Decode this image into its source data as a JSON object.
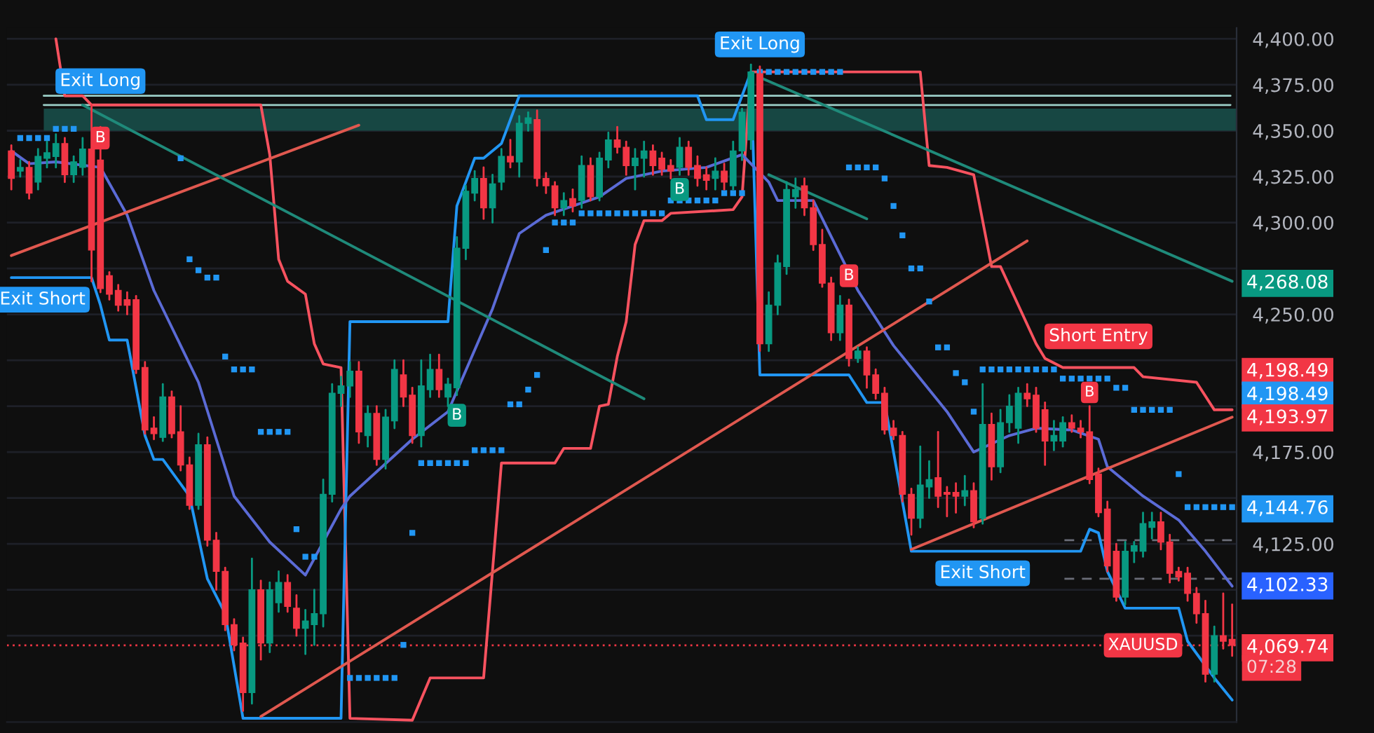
{
  "chart_data": {
    "type": "candlestick",
    "categories": [
      null,
      null,
      null,
      null,
      null,
      null,
      null,
      null,
      null,
      null,
      null,
      null,
      null,
      null,
      null,
      null,
      null,
      null,
      null,
      null,
      null,
      null,
      null,
      null,
      null,
      null,
      null,
      null,
      null,
      null,
      null,
      null,
      null,
      null,
      null,
      null,
      null,
      null,
      null,
      null,
      null,
      null,
      null,
      null,
      null,
      null,
      null,
      null,
      null,
      null,
      null,
      null,
      null,
      null,
      null,
      null,
      null,
      null,
      null,
      null,
      null,
      null,
      null,
      null,
      null,
      null,
      null,
      null,
      null,
      null,
      null,
      null,
      null,
      null,
      null,
      null,
      null,
      null,
      null,
      null,
      null,
      null,
      null,
      null,
      null,
      null,
      null,
      null,
      null,
      null,
      null,
      null,
      null,
      null,
      null,
      null,
      null,
      null,
      null,
      null,
      null,
      null,
      null,
      null,
      null,
      null,
      null,
      null,
      null,
      null,
      null,
      null,
      null,
      null,
      null,
      null,
      null,
      null,
      null,
      null,
      null,
      null,
      null,
      null,
      null,
      null,
      null,
      null,
      null,
      null,
      null,
      null,
      null,
      null,
      null,
      null,
      null,
      null
    ],
    "ohlc": [
      [
        4339,
        4342,
        4318,
        4324
      ],
      [
        4328,
        4334,
        4325,
        4330
      ],
      [
        4330,
        4333,
        4313,
        4316
      ],
      [
        4322,
        4340,
        4318,
        4336
      ],
      [
        4335,
        4344,
        4330,
        4338
      ],
      [
        4336,
        4348,
        4330,
        4343
      ],
      [
        4343,
        4346,
        4322,
        4326
      ],
      [
        4326,
        4336,
        4322,
        4333
      ],
      [
        4330,
        4346,
        4326,
        4340
      ],
      [
        4340,
        4364,
        4268,
        4285
      ],
      [
        4334,
        4352,
        4262,
        4264
      ],
      [
        4271,
        4273,
        4258,
        4261
      ],
      [
        4263,
        4266,
        4252,
        4255
      ],
      [
        4258,
        4262,
        4250,
        4255
      ],
      [
        4258,
        4260,
        4218,
        4220
      ],
      [
        4221,
        4224,
        4185,
        4187
      ],
      [
        4188,
        4194,
        4182,
        4185
      ],
      [
        4183,
        4212,
        4181,
        4205
      ],
      [
        4205,
        4208,
        4183,
        4185
      ],
      [
        4186,
        4200,
        4165,
        4168
      ],
      [
        4168,
        4172,
        4144,
        4146
      ],
      [
        4146,
        4185,
        4144,
        4179
      ],
      [
        4179,
        4183,
        4124,
        4127
      ],
      [
        4127,
        4131,
        4100,
        4110
      ],
      [
        4110,
        4112,
        4078,
        4081
      ],
      [
        4081,
        4084,
        4067,
        4070
      ],
      [
        4071,
        4074,
        4034,
        4044
      ],
      [
        4044,
        4117,
        4038,
        4100
      ],
      [
        4100,
        4105,
        4062,
        4071
      ],
      [
        4071,
        4104,
        4066,
        4100
      ],
      [
        4093,
        4110,
        4088,
        4104
      ],
      [
        4104,
        4108,
        4088,
        4091
      ],
      [
        4090,
        4097,
        4075,
        4079
      ],
      [
        4079,
        4089,
        4065,
        4083
      ],
      [
        4081,
        4100,
        4070,
        4087
      ],
      [
        4087,
        4160,
        4080,
        4152
      ],
      [
        4152,
        4212,
        4148,
        4207
      ],
      [
        4207,
        4216,
        4200,
        4211
      ],
      [
        4211,
        4224,
        4205,
        4219
      ],
      [
        4219,
        4224,
        4180,
        4186
      ],
      [
        4184,
        4200,
        4178,
        4196
      ],
      [
        4196,
        4200,
        4168,
        4171
      ],
      [
        4171,
        4198,
        4166,
        4194
      ],
      [
        4192,
        4225,
        4188,
        4220
      ],
      [
        4217,
        4225,
        4200,
        4205
      ],
      [
        4206,
        4210,
        4180,
        4184
      ],
      [
        4184,
        4225,
        4178,
        4211
      ],
      [
        4209,
        4228,
        4205,
        4220
      ],
      [
        4220,
        4228,
        4205,
        4209
      ],
      [
        4205,
        4215,
        4200,
        4212
      ],
      [
        4210,
        4292,
        4206,
        4286
      ],
      [
        4286,
        4320,
        4280,
        4317
      ],
      [
        4316,
        4328,
        4312,
        4324
      ],
      [
        4324,
        4330,
        4302,
        4308
      ],
      [
        4308,
        4326,
        4300,
        4321
      ],
      [
        4322,
        4340,
        4318,
        4336
      ],
      [
        4336,
        4345,
        4330,
        4333
      ],
      [
        4333,
        4358,
        4325,
        4354
      ],
      [
        4354,
        4360,
        4350,
        4357
      ],
      [
        4356,
        4361,
        4320,
        4324
      ],
      [
        4324,
        4327,
        4316,
        4320
      ],
      [
        4320,
        4322,
        4304,
        4308
      ],
      [
        4308,
        4316,
        4304,
        4312
      ],
      [
        4313,
        4318,
        4306,
        4309
      ],
      [
        4312,
        4336,
        4308,
        4331
      ],
      [
        4331,
        4335,
        4312,
        4314
      ],
      [
        4314,
        4338,
        4312,
        4335
      ],
      [
        4334,
        4349,
        4330,
        4345
      ],
      [
        4345,
        4352,
        4338,
        4341
      ],
      [
        4341,
        4344,
        4326,
        4331
      ],
      [
        4331,
        4340,
        4318,
        4335
      ],
      [
        4335,
        4344,
        4325,
        4339
      ],
      [
        4339,
        4342,
        4326,
        4331
      ],
      [
        4335,
        4338,
        4326,
        4329
      ],
      [
        4331,
        4334,
        4324,
        4328
      ],
      [
        4330,
        4346,
        4326,
        4341
      ],
      [
        4341,
        4344,
        4326,
        4330
      ],
      [
        4331,
        4336,
        4320,
        4324
      ],
      [
        4326,
        4330,
        4318,
        4323
      ],
      [
        4324,
        4335,
        4318,
        4328
      ],
      [
        4328,
        4332,
        4318,
        4322
      ],
      [
        4320,
        4344,
        4318,
        4339
      ],
      [
        4339,
        4362,
        4334,
        4360
      ],
      [
        4345,
        4386,
        4340,
        4382
      ],
      [
        4381,
        4385,
        4230,
        4234
      ],
      [
        4234,
        4262,
        4230,
        4255
      ],
      [
        4255,
        4282,
        4250,
        4278
      ],
      [
        4276,
        4322,
        4272,
        4318
      ],
      [
        4314,
        4324,
        4308,
        4318
      ],
      [
        4320,
        4324,
        4304,
        4308
      ],
      [
        4308,
        4312,
        4285,
        4288
      ],
      [
        4288,
        4296,
        4265,
        4267
      ],
      [
        4267,
        4270,
        4236,
        4240
      ],
      [
        4240,
        4260,
        4236,
        4255
      ],
      [
        4255,
        4258,
        4222,
        4226
      ],
      [
        4226,
        4232,
        4224,
        4230
      ],
      [
        4230,
        4232,
        4210,
        4217
      ],
      [
        4217,
        4220,
        4204,
        4207
      ],
      [
        4207,
        4210,
        4185,
        4187
      ],
      [
        4188,
        4192,
        4182,
        4184
      ],
      [
        4184,
        4186,
        4148,
        4152
      ],
      [
        4152,
        4155,
        4130,
        4139
      ],
      [
        4139,
        4178,
        4134,
        4157
      ],
      [
        4156,
        4170,
        4150,
        4160
      ],
      [
        4161,
        4186,
        4145,
        4151
      ],
      [
        4153,
        4156,
        4140,
        4152
      ],
      [
        4153,
        4158,
        4142,
        4151
      ],
      [
        4151,
        4162,
        4146,
        4154
      ],
      [
        4154,
        4158,
        4134,
        4137
      ],
      [
        4139,
        4212,
        4136,
        4190
      ],
      [
        4190,
        4196,
        4160,
        4167
      ],
      [
        4167,
        4198,
        4164,
        4191
      ],
      [
        4191,
        4206,
        4186,
        4200
      ],
      [
        4188,
        4210,
        4180,
        4207
      ],
      [
        4207,
        4212,
        4200,
        4204
      ],
      [
        4206,
        4210,
        4186,
        4188
      ],
      [
        4198,
        4202,
        4168,
        4181
      ],
      [
        4181,
        4192,
        4176,
        4184
      ],
      [
        4181,
        4194,
        4178,
        4191
      ],
      [
        4191,
        4195,
        4186,
        4188
      ],
      [
        4188,
        4192,
        4183,
        4186
      ],
      [
        4186,
        4200,
        4158,
        4160
      ],
      [
        4163,
        4166,
        4140,
        4142
      ],
      [
        4144,
        4148,
        4110,
        4113
      ],
      [
        4121,
        4125,
        4094,
        4096
      ],
      [
        4096,
        4126,
        4092,
        4121
      ],
      [
        4121,
        4126,
        4115,
        4124
      ],
      [
        4121,
        4142,
        4118,
        4136
      ],
      [
        4134,
        4142,
        4128,
        4137
      ],
      [
        4137,
        4142,
        4122,
        4126
      ],
      [
        4126,
        4130,
        4104,
        4109
      ],
      [
        4110,
        4112,
        4105,
        4107
      ],
      [
        4109,
        4112,
        4094,
        4098
      ],
      [
        4098,
        4101,
        4082,
        4087
      ],
      [
        4087,
        4094,
        4050,
        4054
      ],
      [
        4054,
        4080,
        4050,
        4075
      ],
      [
        4075,
        4098,
        4068,
        4072
      ],
      [
        4073,
        4092,
        4064,
        4069.74
      ]
    ],
    "series": [
      {
        "type": "line",
        "color": "#f7525f",
        "values": [
          null,
          null,
          null,
          null,
          null,
          4400,
          4369,
          null,
          4369,
          4364,
          null,
          null,
          null,
          null,
          null,
          null,
          null,
          null,
          null,
          null,
          null,
          null,
          null,
          null,
          null,
          null,
          null,
          null,
          4364,
          4337,
          4280,
          4268,
          null,
          4261,
          4234,
          4223,
          null,
          4221,
          4030,
          null,
          null,
          null,
          null,
          null,
          null,
          4029,
          null,
          4052,
          null,
          null,
          null,
          null,
          null,
          4052,
          null,
          4169,
          null,
          null,
          null,
          null,
          null,
          4169,
          4177,
          null,
          null,
          4177,
          4200,
          4201,
          4227,
          4246,
          4288,
          4301,
          null,
          4301,
          4305,
          null,
          null,
          null,
          null,
          null,
          null,
          4307,
          4314,
          4382,
          null,
          null,
          null,
          null,
          null,
          null,
          null,
          null,
          null,
          null,
          null,
          null,
          null,
          null,
          null,
          null,
          null,
          null,
          4382,
          4331,
          null,
          4330,
          null,
          null,
          4326,
          null,
          4276,
          4276,
          null,
          null,
          null,
          4234,
          4226,
          null,
          4221,
          null,
          null,
          null,
          null,
          null,
          null,
          null,
          4221,
          4216,
          null,
          null,
          null,
          null,
          null,
          4213,
          null,
          4198,
          null,
          4198
        ]
      },
      {
        "type": "line",
        "color": "#2196f3",
        "values": [
          4270,
          null,
          null,
          null,
          null,
          4270,
          null,
          null,
          null,
          4270,
          4255,
          4236,
          null,
          4236,
          null,
          4184,
          4171,
          4171,
          null,
          null,
          4151,
          null,
          4106,
          null,
          4087,
          null,
          4030,
          null,
          null,
          null,
          null,
          null,
          null,
          null,
          null,
          null,
          null,
          4030,
          4246,
          null,
          null,
          null,
          null,
          null,
          null,
          null,
          null,
          null,
          null,
          4246,
          4309,
          null,
          4335,
          4335,
          null,
          4343,
          null,
          4369,
          null,
          null,
          null,
          null,
          null,
          null,
          null,
          null,
          null,
          null,
          null,
          null,
          null,
          null,
          null,
          null,
          null,
          null,
          null,
          4369,
          4356,
          null,
          null,
          4356,
          null,
          4382,
          4217,
          null,
          null,
          null,
          null,
          null,
          null,
          null,
          null,
          null,
          4217,
          null,
          4202,
          null,
          4202,
          null,
          null,
          4121,
          null,
          null,
          null,
          null,
          null,
          null,
          null,
          null,
          null,
          null,
          null,
          null,
          null,
          null,
          null,
          null,
          null,
          null,
          4121,
          4133,
          4131,
          4110,
          null,
          4090,
          null,
          null,
          null,
          null,
          null,
          4090,
          4072,
          null,
          null,
          4052,
          null,
          4040
        ]
      },
      {
        "type": "line",
        "color": "#5b6bd6",
        "values": [
          4339,
          null,
          4332,
          null,
          null,
          4333,
          null,
          null,
          null,
          null,
          4330,
          null,
          null,
          4304,
          null,
          null,
          4263,
          null,
          null,
          null,
          null,
          4213,
          null,
          null,
          null,
          4151,
          null,
          null,
          null,
          4126,
          null,
          null,
          null,
          4108,
          null,
          null,
          null,
          4144,
          4151,
          null,
          null,
          null,
          null,
          null,
          null,
          4182,
          null,
          null,
          null,
          4197,
          null,
          null,
          null,
          null,
          4253,
          null,
          null,
          4294,
          null,
          null,
          4304,
          null,
          null,
          null,
          null,
          null,
          4314,
          null,
          null,
          4324,
          null,
          null,
          null,
          4328,
          null,
          null,
          null,
          null,
          4330,
          null,
          null,
          null,
          4337,
          4332,
          null,
          4322,
          4312,
          null,
          null,
          null,
          4312,
          null,
          null,
          null,
          null,
          4263,
          null,
          null,
          null,
          4233,
          null,
          null,
          null,
          null,
          null,
          4197,
          null,
          null,
          4175,
          null,
          null,
          null,
          4184,
          null,
          null,
          4188,
          null,
          null,
          null,
          4187,
          null,
          null,
          4182,
          4167,
          null,
          null,
          null,
          4151,
          null,
          null,
          null,
          4138,
          null,
          null,
          4121,
          null,
          null,
          4102
        ]
      },
      {
        "type": "line",
        "color": "#e0584f",
        "values": [
          4282,
          null,
          null,
          null,
          null,
          null,
          null,
          null,
          null,
          null,
          null,
          null,
          null,
          null,
          null,
          null,
          null,
          null,
          null,
          null,
          null,
          null,
          null,
          null,
          null,
          null,
          null,
          null,
          null,
          null,
          null,
          null,
          null,
          null,
          null,
          null,
          null,
          null,
          null,
          4353,
          null,
          null,
          null,
          null,
          null,
          null,
          null,
          null,
          null,
          null,
          null,
          null,
          null,
          null,
          null,
          null,
          null,
          null,
          null,
          null,
          null,
          null,
          null,
          null,
          null,
          null,
          null,
          null,
          null,
          null,
          null,
          null,
          null,
          null,
          null,
          null,
          null,
          null,
          null,
          null,
          null,
          null,
          null,
          null,
          null,
          null,
          null,
          null,
          null,
          null,
          null,
          null,
          null,
          null,
          null,
          null,
          null,
          null,
          null,
          null,
          null,
          null,
          null,
          null,
          null,
          null,
          null,
          null,
          null,
          null,
          null,
          null,
          null,
          null,
          null,
          null,
          null,
          null,
          null,
          null,
          null,
          null,
          null,
          null,
          null,
          null,
          null,
          null,
          null,
          null,
          null,
          null,
          null,
          null,
          null,
          null,
          null,
          null
        ]
      },
      {
        "type": "line",
        "color": "#e0584f",
        "values": [
          null,
          null,
          null,
          null,
          null,
          null,
          null,
          null,
          null,
          null,
          null,
          null,
          null,
          null,
          null,
          null,
          null,
          null,
          null,
          null,
          null,
          null,
          null,
          null,
          null,
          null,
          null,
          null,
          4031,
          null,
          null,
          null,
          null,
          null,
          null,
          null,
          null,
          null,
          null,
          null,
          null,
          null,
          null,
          null,
          null,
          null,
          null,
          null,
          null,
          null,
          null,
          null,
          null,
          null,
          null,
          null,
          null,
          null,
          null,
          null,
          null,
          null,
          null,
          null,
          null,
          null,
          null,
          null,
          null,
          null,
          null,
          null,
          null,
          null,
          null,
          null,
          null,
          null,
          null,
          null,
          null,
          null,
          null,
          null,
          null,
          null,
          null,
          null,
          null,
          null,
          null,
          null,
          null,
          null,
          null,
          null,
          null,
          null,
          null,
          null,
          null,
          null,
          null,
          null,
          null,
          null,
          null,
          null,
          null,
          null,
          null,
          null,
          null,
          null,
          4290,
          null,
          null,
          null,
          null,
          null,
          null,
          null,
          null,
          null,
          null,
          null,
          null,
          null,
          null,
          null,
          null,
          null,
          null,
          null,
          null,
          null,
          null,
          null
        ]
      },
      {
        "type": "line",
        "color": "#e0584f",
        "values": [
          null,
          null,
          null,
          null,
          null,
          null,
          null,
          null,
          null,
          null,
          null,
          null,
          null,
          null,
          null,
          null,
          null,
          null,
          null,
          null,
          null,
          null,
          null,
          null,
          null,
          null,
          null,
          null,
          null,
          null,
          null,
          null,
          null,
          null,
          null,
          null,
          null,
          null,
          null,
          null,
          null,
          null,
          null,
          null,
          null,
          null,
          null,
          null,
          null,
          null,
          null,
          null,
          null,
          null,
          null,
          null,
          null,
          null,
          null,
          null,
          null,
          null,
          null,
          null,
          null,
          null,
          null,
          null,
          null,
          null,
          null,
          null,
          null,
          null,
          null,
          null,
          null,
          null,
          null,
          null,
          null,
          null,
          null,
          null,
          null,
          null,
          null,
          null,
          null,
          null,
          null,
          null,
          null,
          null,
          null,
          null,
          null,
          null,
          null,
          null,
          null,
          4122,
          null,
          null,
          null,
          null,
          null,
          null,
          null,
          null,
          null,
          null,
          null,
          null,
          null,
          null,
          null,
          null,
          null,
          null,
          null,
          null,
          null,
          null,
          null,
          null,
          null,
          null,
          null,
          null,
          null,
          null,
          null,
          null,
          null,
          null,
          null,
          4194
        ]
      },
      {
        "type": "line",
        "color": "#1f8a7a",
        "values": [
          null,
          null,
          null,
          null,
          null,
          null,
          null,
          null,
          4364,
          null,
          null,
          null,
          null,
          null,
          null,
          null,
          null,
          null,
          null,
          null,
          null,
          null,
          null,
          null,
          null,
          null,
          null,
          null,
          null,
          null,
          null,
          null,
          null,
          null,
          null,
          null,
          null,
          null,
          null,
          null,
          null,
          null,
          null,
          null,
          null,
          null,
          null,
          null,
          null,
          null,
          null,
          null,
          null,
          null,
          null,
          null,
          null,
          null,
          null,
          null,
          null,
          null,
          null,
          null,
          null,
          null,
          null,
          null,
          null,
          null,
          null,
          4204,
          null,
          null,
          null,
          null,
          null,
          null,
          null,
          null,
          null,
          null,
          null,
          null,
          null,
          null,
          null,
          null,
          null,
          null,
          null,
          null,
          null,
          null,
          null,
          null,
          null,
          null,
          null,
          null,
          null,
          null,
          null,
          null,
          null,
          null,
          null,
          null,
          null,
          null,
          null,
          null,
          null,
          null,
          null,
          null,
          null,
          null,
          null,
          null,
          null,
          null,
          null,
          null,
          null,
          null,
          null,
          null,
          null,
          null,
          null,
          null,
          null,
          null,
          null,
          null,
          null,
          null
        ]
      },
      {
        "type": "line",
        "color": "#1f8a7a",
        "values": [
          null,
          null,
          null,
          null,
          null,
          null,
          null,
          null,
          null,
          null,
          null,
          null,
          null,
          null,
          null,
          null,
          null,
          null,
          null,
          null,
          null,
          null,
          null,
          null,
          null,
          null,
          null,
          null,
          null,
          null,
          null,
          null,
          null,
          null,
          null,
          null,
          null,
          null,
          null,
          null,
          null,
          null,
          null,
          null,
          null,
          null,
          null,
          null,
          null,
          null,
          null,
          null,
          null,
          null,
          null,
          null,
          null,
          null,
          null,
          null,
          null,
          null,
          null,
          null,
          null,
          null,
          null,
          null,
          null,
          null,
          null,
          null,
          null,
          null,
          null,
          null,
          null,
          null,
          null,
          null,
          null,
          null,
          null,
          null,
          4379,
          null,
          null,
          null,
          null,
          null,
          null,
          null,
          null,
          null,
          null,
          null,
          null,
          null,
          null,
          null,
          null,
          null,
          null,
          null,
          null,
          null,
          null,
          null,
          null,
          null,
          null,
          null,
          null,
          null,
          null,
          null,
          null,
          null,
          null,
          null,
          null,
          null,
          null,
          null,
          null,
          null,
          null,
          null,
          null,
          null,
          null,
          null,
          null,
          null,
          null,
          null,
          null,
          4268
        ]
      },
      {
        "type": "line",
        "color": "#1f8a7a",
        "values": [
          null,
          null,
          null,
          null,
          null,
          null,
          null,
          null,
          null,
          null,
          null,
          null,
          null,
          null,
          null,
          null,
          null,
          null,
          null,
          null,
          null,
          null,
          null,
          null,
          null,
          null,
          null,
          null,
          null,
          null,
          null,
          null,
          null,
          null,
          null,
          null,
          null,
          null,
          null,
          null,
          null,
          null,
          null,
          null,
          null,
          null,
          null,
          null,
          null,
          null,
          null,
          null,
          null,
          null,
          null,
          null,
          null,
          null,
          null,
          null,
          null,
          null,
          null,
          null,
          null,
          null,
          null,
          null,
          null,
          null,
          null,
          null,
          null,
          null,
          null,
          null,
          null,
          null,
          null,
          null,
          null,
          null,
          null,
          null,
          null,
          4326,
          null,
          null,
          null,
          null,
          null,
          null,
          null,
          null,
          null,
          null,
          4302,
          null,
          null,
          null,
          null,
          null,
          null,
          null,
          null,
          null,
          null,
          null,
          null,
          null,
          null,
          null,
          null,
          null,
          null,
          null,
          null,
          null,
          null,
          null,
          null,
          null,
          null,
          null,
          null,
          null,
          null,
          null,
          null,
          null,
          null,
          null,
          null,
          null,
          null,
          null,
          null,
          null
        ]
      },
      {
        "type": "scatter",
        "color": "#2196f3",
        "marker": "square",
        "values": [
          null,
          4346,
          4346,
          4346,
          4346,
          4351,
          4351,
          4351,
          null,
          null,
          null,
          null,
          null,
          null,
          null,
          null,
          null,
          null,
          null,
          4335,
          4280,
          4274,
          4270,
          4270,
          4227,
          4220,
          4220,
          4220,
          4186,
          4186,
          4186,
          4186,
          4133,
          4118,
          4118,
          null,
          null,
          null,
          4052,
          4052,
          4052,
          4052,
          4052,
          4052,
          4070,
          4131,
          4169,
          4169,
          4169,
          4169,
          4169,
          4169,
          4176,
          4176,
          4176,
          4176,
          4201,
          4201,
          4209,
          4217,
          4285,
          4300,
          4300,
          4300,
          4305,
          4305,
          4305,
          4305,
          4305,
          4305,
          4305,
          4305,
          4305,
          4305,
          4312,
          4312,
          4312,
          4312,
          4312,
          4312,
          4316,
          4316,
          4316,
          null,
          4382,
          4382,
          4382,
          4382,
          4382,
          4382,
          4382,
          4382,
          4382,
          4382,
          4330,
          4330,
          4330,
          4330,
          4324,
          4309,
          4293,
          4275,
          4275,
          4257,
          4232,
          4232,
          4218,
          4213,
          4197,
          4220,
          4220,
          4220,
          4220,
          4220,
          4220,
          4220,
          4220,
          4220,
          4215,
          4215,
          4215,
          4215,
          4215,
          4215,
          4210,
          4210,
          4198,
          4198,
          4198,
          4198,
          4198,
          4163,
          4145,
          4145,
          4145,
          4145,
          4145,
          4145
        ]
      }
    ],
    "ylim": [
      4028,
      4406
    ],
    "yticks": [
      {
        "value": 4075,
        "label": null
      },
      {
        "value": 4100,
        "label": null
      },
      {
        "value": 4125,
        "label": "4,125.00"
      },
      {
        "value": 4150,
        "label": null
      },
      {
        "value": 4175,
        "label": "4,175.00"
      },
      {
        "value": 4200,
        "label": null
      },
      {
        "value": 4225,
        "label": null
      },
      {
        "value": 4250,
        "label": "4,250.00"
      },
      {
        "value": 4275,
        "label": null
      },
      {
        "value": 4300,
        "label": "4,300.00"
      },
      {
        "value": 4325,
        "label": "4,325.00"
      },
      {
        "value": 4350,
        "label": "4,350.00"
      },
      {
        "value": 4375,
        "label": "4,375.00"
      },
      {
        "value": 4400,
        "label": "4,400.00"
      }
    ],
    "tick_labels": "y",
    "grid": "y",
    "bands": [
      {
        "axis": "y",
        "from": 4350,
        "to": 4362,
        "color": "#174743"
      }
    ],
    "ref_lines": [
      {
        "axis": "y",
        "value": 4369,
        "color": "#9ccfc8",
        "line_style": "solid"
      },
      {
        "axis": "y",
        "value": 4364,
        "color": "#9ccfc8",
        "line_style": "solid"
      },
      {
        "axis": "y",
        "value": 4127,
        "color": "#6a6d78",
        "line_style": "dashed"
      },
      {
        "axis": "y",
        "value": 4106,
        "color": "#6a6d78",
        "line_style": "dashed"
      },
      {
        "axis": "y",
        "value": 4069.74,
        "color": "#f23645",
        "line_style": "dotted"
      }
    ],
    "annotations": [
      "Exit Long",
      "Exit Long",
      "Exit Short",
      "Exit Short",
      "Short Entry",
      "B",
      "B",
      "B",
      "B",
      "B",
      "XAUUSD",
      "07:28",
      "4,268.08",
      "4,198.49",
      "4,198.49",
      "4,193.97",
      "4,144.76",
      "4,102.33",
      "4,069.74"
    ]
  }
}
